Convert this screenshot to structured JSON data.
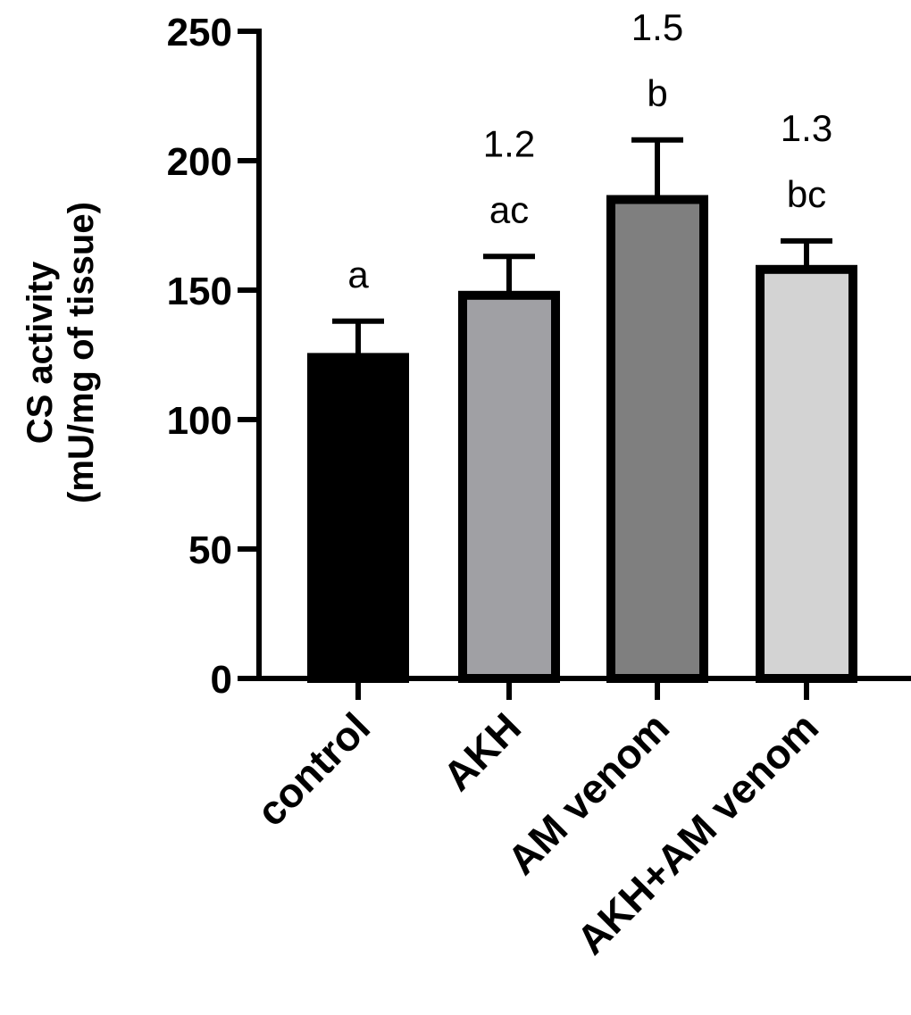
{
  "chart_data": {
    "type": "bar",
    "categories": [
      "control",
      "AKH",
      "AM venom",
      "AKH+AM venom"
    ],
    "values": [
      124,
      148,
      185,
      158
    ],
    "errors": [
      14,
      15,
      23,
      11
    ],
    "letters": [
      "a",
      "ac",
      "b",
      "bc"
    ],
    "fold_changes": [
      "",
      "1.2",
      "1.5",
      "1.3"
    ],
    "colors": [
      "#000000",
      "#a0a0a4",
      "#7f7f7f",
      "#d3d3d3"
    ],
    "ylabel_lines": [
      "CS activity",
      "(mU/mg of tissue)"
    ],
    "xlabel": "",
    "title": "",
    "ylim": [
      0,
      250
    ],
    "yticks": [
      0,
      50,
      100,
      150,
      200,
      250
    ],
    "grid": false,
    "legend": "none"
  }
}
